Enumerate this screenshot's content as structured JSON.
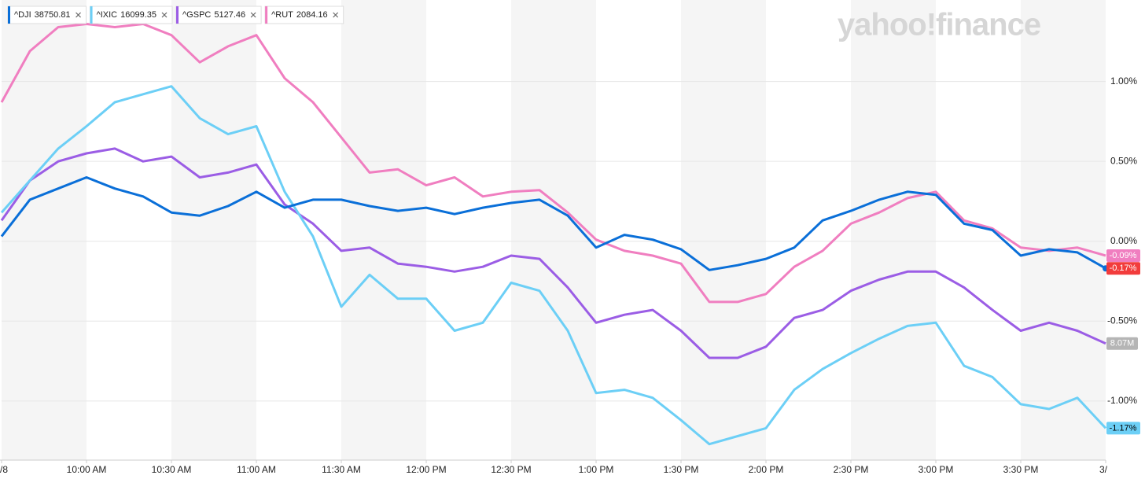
{
  "chart_data": {
    "type": "line",
    "watermark": "yahoo!finance",
    "x": [
      "9:30 AM",
      "9:40 AM",
      "9:50 AM",
      "10:00 AM",
      "10:10 AM",
      "10:20 AM",
      "10:30 AM",
      "10:40 AM",
      "10:50 AM",
      "11:00 AM",
      "11:10 AM",
      "11:20 AM",
      "11:30 AM",
      "11:40 AM",
      "11:50 AM",
      "12:00 PM",
      "12:10 PM",
      "12:20 PM",
      "12:30 PM",
      "12:40 PM",
      "12:50 PM",
      "1:00 PM",
      "1:10 PM",
      "1:20 PM",
      "1:30 PM",
      "1:40 PM",
      "1:50 PM",
      "2:00 PM",
      "2:10 PM",
      "2:20 PM",
      "2:30 PM",
      "2:40 PM",
      "2:50 PM",
      "3:00 PM",
      "3:10 PM",
      "3:20 PM",
      "3:30 PM",
      "3:40 PM",
      "3:50 PM",
      "4:00 PM"
    ],
    "xticks": [
      {
        "value": "9:30 AM",
        "label": "/8"
      },
      "10:00 AM",
      "10:30 AM",
      "11:00 AM",
      "11:30 AM",
      "12:00 PM",
      "12:30 PM",
      "1:00 PM",
      "1:30 PM",
      "2:00 PM",
      "2:30 PM",
      "3:00 PM",
      "3:30 PM",
      {
        "value": "4:00 PM",
        "label": "3/"
      }
    ],
    "ylim": [
      -1.37,
      1.51
    ],
    "yticks": [
      {
        "value": 1,
        "label": "1.00%"
      },
      {
        "value": 0.5,
        "label": "0.50%"
      },
      {
        "value": 0,
        "label": "0.00%"
      },
      {
        "value": -0.5,
        "label": "-0.50%"
      },
      {
        "value": -1,
        "label": "-1.00%"
      }
    ],
    "grid": true,
    "volume_label": "8.07M",
    "series": [
      {
        "name": "^RUT",
        "quote": 2084.16,
        "color": "#f07ec0",
        "values": [
          0.87,
          1.19,
          1.34,
          1.36,
          1.34,
          1.36,
          1.29,
          1.12,
          1.22,
          1.29,
          1.02,
          0.87,
          0.65,
          0.43,
          0.45,
          0.35,
          0.4,
          0.28,
          0.31,
          0.32,
          0.18,
          0.01,
          -0.06,
          -0.09,
          -0.14,
          -0.38,
          -0.38,
          -0.33,
          -0.16,
          -0.06,
          0.11,
          0.18,
          0.27,
          0.31,
          0.13,
          0.08,
          -0.04,
          -0.06,
          -0.04,
          -0.09
        ],
        "last_label": "-0.09%",
        "last_label_color": "#f07ec0"
      },
      {
        "name": "^GSPC",
        "quote": 5127.46,
        "color": "#9b5de5",
        "values": [
          0.13,
          0.38,
          0.5,
          0.55,
          0.58,
          0.5,
          0.53,
          0.4,
          0.43,
          0.48,
          0.23,
          0.11,
          -0.06,
          -0.04,
          -0.14,
          -0.16,
          -0.19,
          -0.16,
          -0.09,
          -0.11,
          -0.29,
          -0.51,
          -0.46,
          -0.43,
          -0.56,
          -0.73,
          -0.73,
          -0.66,
          -0.48,
          -0.43,
          -0.31,
          -0.24,
          -0.19,
          -0.19,
          -0.29,
          -0.43,
          -0.56,
          -0.51,
          -0.56,
          -0.64
        ]
      },
      {
        "name": "^IXIC",
        "quote": 16099.35,
        "color": "#6ccff6",
        "values": [
          0.18,
          0.38,
          0.58,
          0.72,
          0.87,
          0.92,
          0.97,
          0.77,
          0.67,
          0.72,
          0.31,
          0.03,
          -0.41,
          -0.21,
          -0.36,
          -0.36,
          -0.56,
          -0.51,
          -0.26,
          -0.31,
          -0.56,
          -0.95,
          -0.93,
          -0.98,
          -1.12,
          -1.27,
          -1.22,
          -1.17,
          -0.93,
          -0.8,
          -0.7,
          -0.61,
          -0.53,
          -0.51,
          -0.78,
          -0.85,
          -1.02,
          -1.05,
          -0.98,
          -1.17
        ],
        "last_label": "-1.17%",
        "last_label_color": "#6ccff6"
      },
      {
        "name": "^DJI",
        "quote": 38750.81,
        "color": "#0a6fd8",
        "values": [
          0.03,
          0.26,
          0.33,
          0.4,
          0.33,
          0.28,
          0.18,
          0.16,
          0.22,
          0.31,
          0.21,
          0.26,
          0.26,
          0.22,
          0.19,
          0.21,
          0.17,
          0.21,
          0.24,
          0.26,
          0.16,
          -0.04,
          0.04,
          0.01,
          -0.05,
          -0.18,
          -0.15,
          -0.11,
          -0.04,
          0.13,
          0.19,
          0.26,
          0.31,
          0.29,
          0.11,
          0.07,
          -0.09,
          -0.05,
          -0.07,
          -0.17
        ],
        "last_label": "-0.17%",
        "last_label_color": "#f23c3c"
      }
    ]
  }
}
